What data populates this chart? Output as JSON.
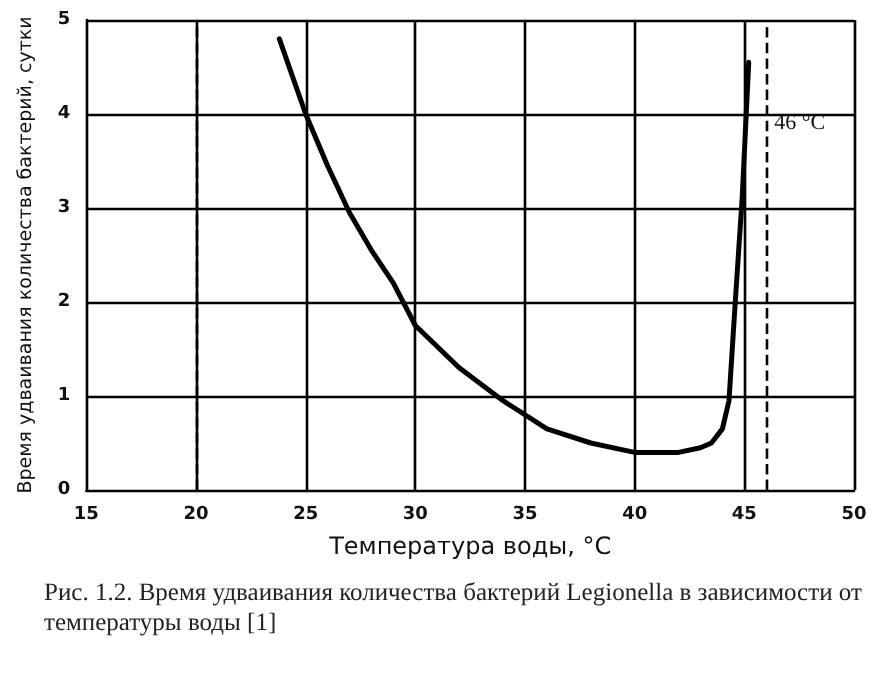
{
  "chart_data": {
    "type": "line",
    "xlabel": "Температура воды, °C",
    "ylabel": "Время удваивания количества бактерий, сутки",
    "annotations": [
      "Рис. 1.2. Время удваивания количества бактерий Legionella в зависимости от температуры воды [1]"
    ],
    "x": [
      23.8,
      25,
      26,
      27,
      28,
      29,
      30,
      32,
      34,
      36,
      38,
      40,
      42,
      43,
      43.5,
      44,
      44.3,
      44.6,
      44.9,
      45.2
    ],
    "series": [
      {
        "color": "#000000",
        "values": [
          4.8,
          4.0,
          3.45,
          2.95,
          2.55,
          2.2,
          1.75,
          1.3,
          0.95,
          0.65,
          0.5,
          0.4,
          0.4,
          0.45,
          0.5,
          0.65,
          0.95,
          2.05,
          3.1,
          4.55
        ]
      }
    ],
    "xlim": [
      15,
      50
    ],
    "xticks": [
      15,
      20,
      25,
      30,
      35,
      40,
      45,
      50
    ],
    "ylim": [
      0,
      5
    ],
    "yticks": [
      0,
      1,
      2,
      3,
      4,
      5
    ],
    "grid": true,
    "marker": "none",
    "line_style": "solid",
    "ref_lines": [
      {
        "axis": "x",
        "value": 20,
        "label": null,
        "line_style": "dashed",
        "color": "#000000"
      },
      {
        "axis": "x",
        "value": 46,
        "label": "46 °C",
        "line_style": "dashed",
        "color": "#000000"
      }
    ]
  }
}
